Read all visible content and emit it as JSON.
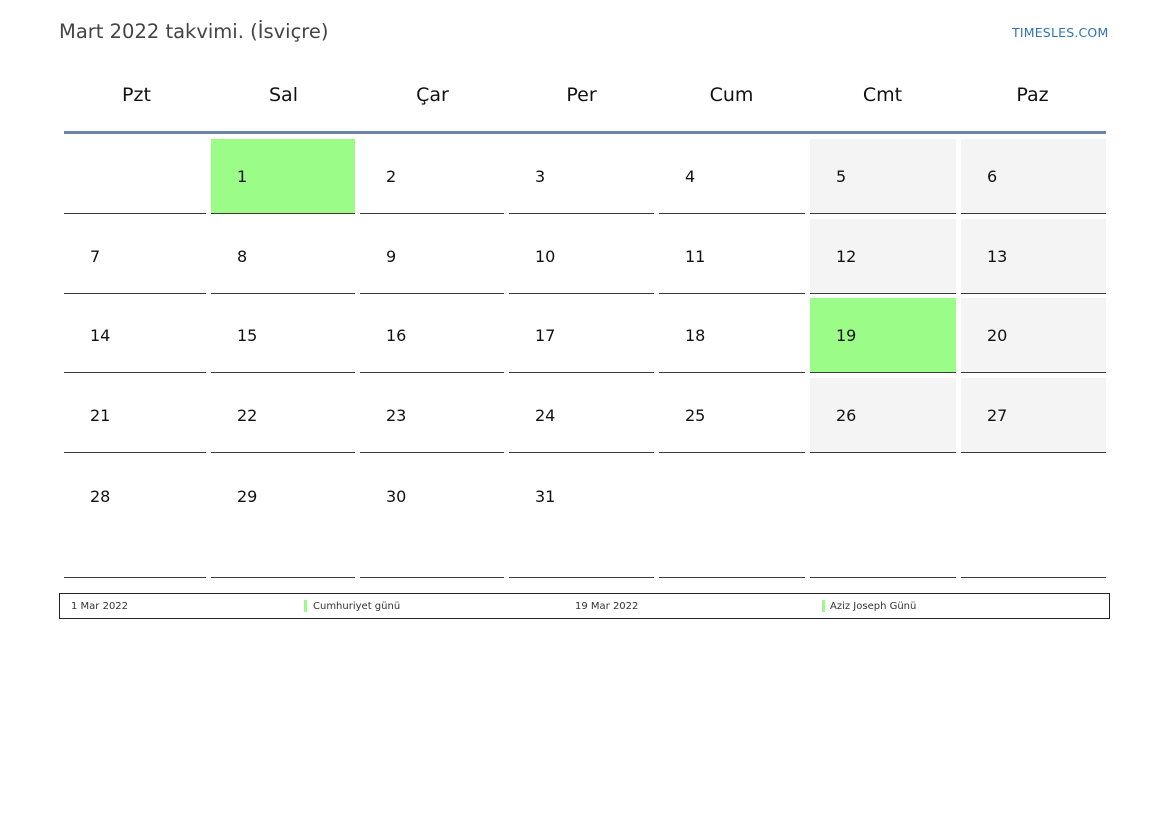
{
  "header": {
    "title": "Mart 2022 takvimi. (İsviçre)",
    "brand": "TIMESLES.COM"
  },
  "colors": {
    "holiday": "#9cfc88",
    "weekend": "#f4f4f4",
    "header_rule": "#6b83a8",
    "brand": "#2f73b5"
  },
  "weekdays": [
    "Pzt",
    "Sal",
    "Çar",
    "Per",
    "Cum",
    "Cmt",
    "Paz"
  ],
  "weeks": [
    [
      "",
      "1",
      "2",
      "3",
      "4",
      "5",
      "6"
    ],
    [
      "7",
      "8",
      "9",
      "10",
      "11",
      "12",
      "13"
    ],
    [
      "14",
      "15",
      "16",
      "17",
      "18",
      "19",
      "20"
    ],
    [
      "21",
      "22",
      "23",
      "24",
      "25",
      "26",
      "27"
    ],
    [
      "28",
      "29",
      "30",
      "31",
      "",
      "",
      ""
    ]
  ],
  "holiday_days": [
    "1",
    "19"
  ],
  "legend": [
    {
      "date": "1 Mar 2022",
      "name": "Cumhuriyet günü"
    },
    {
      "date": "19 Mar 2022",
      "name": "Aziz Joseph Günü"
    }
  ]
}
